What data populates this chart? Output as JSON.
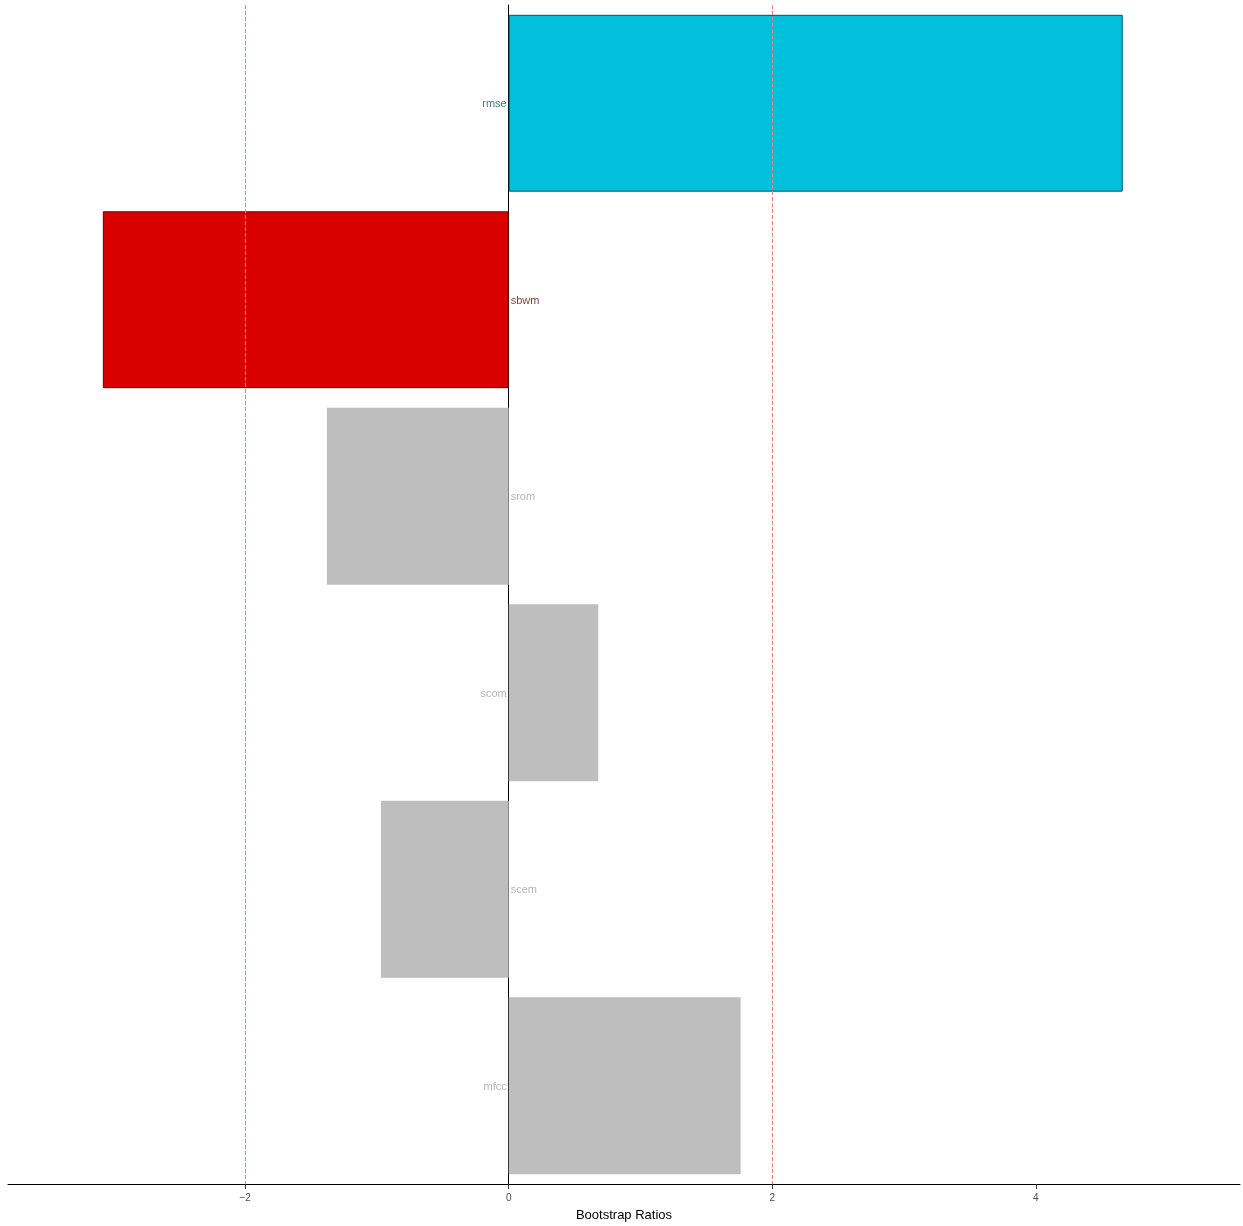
{
  "chart_data": {
    "type": "bar",
    "orientation": "horizontal",
    "xlabel": "Bootstrap Ratios",
    "categories": [
      "rmse",
      "sbwm",
      "srom",
      "scom",
      "scem",
      "mfcc"
    ],
    "values": [
      4.66,
      -3.08,
      -1.38,
      0.68,
      -0.97,
      1.76
    ],
    "colors": [
      "#00c0dc",
      "#d90000",
      "#bebebe",
      "#bebebe",
      "#bebebe",
      "#bebebe"
    ],
    "xlim": [
      -3.8,
      5.55
    ],
    "xticks": [
      -2,
      0,
      2,
      4
    ],
    "grid": false,
    "ref_lines": [
      {
        "axis": "x",
        "value": -2,
        "color": "#f08080",
        "line_style": "dashed"
      },
      {
        "axis": "x",
        "value": 2,
        "color": "#f08080",
        "line_style": "dashed"
      }
    ]
  }
}
